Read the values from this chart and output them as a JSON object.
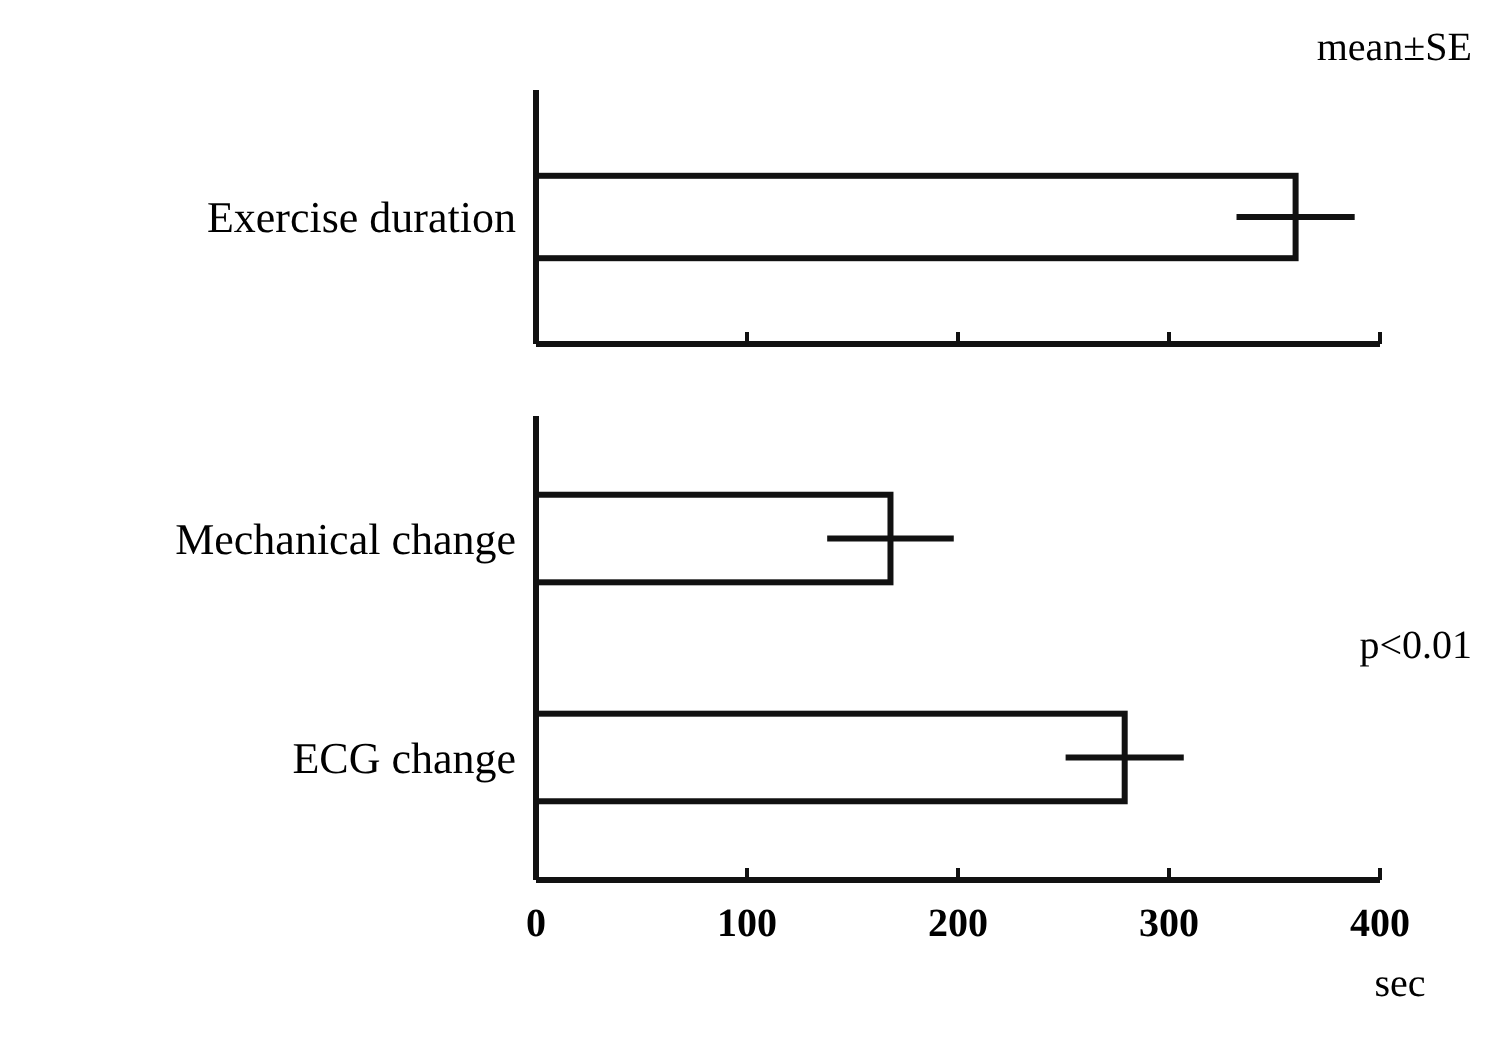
{
  "chart_data": [
    {
      "type": "bar",
      "orientation": "horizontal",
      "categories": [
        "Exercise duration"
      ],
      "values": [
        360
      ],
      "errors": [
        28
      ],
      "xlim": [
        0,
        400
      ],
      "xticks": [
        0,
        100,
        200,
        300,
        400
      ],
      "tick_labels": "y",
      "annotations": [
        "mean±SE"
      ]
    },
    {
      "type": "bar",
      "orientation": "horizontal",
      "categories": [
        "Mechanical change",
        "ECG change"
      ],
      "values": [
        168,
        279
      ],
      "errors": [
        30,
        28
      ],
      "xlim": [
        0,
        400
      ],
      "xticks": [
        0,
        100,
        200,
        300,
        400
      ],
      "xlabel": "sec",
      "annotations": [
        "p<0.01"
      ]
    }
  ]
}
